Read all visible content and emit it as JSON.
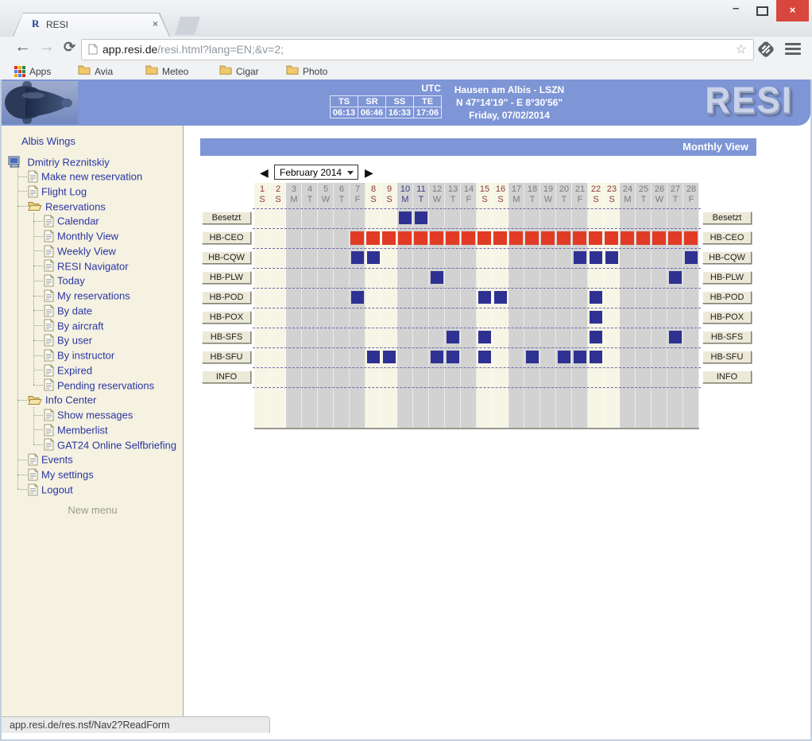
{
  "browser": {
    "window_controls": {
      "minimize": "–",
      "maximize": "",
      "close": "×"
    },
    "tab": {
      "favicon_letter": "R",
      "title": "RESI",
      "close": "×"
    },
    "url": {
      "host": "app.resi.de",
      "rest": "/resi.html?lang=EN;&v=2;"
    },
    "apps_label": "Apps",
    "bookmarks": [
      {
        "label": "Avia"
      },
      {
        "label": "Meteo"
      },
      {
        "label": "Cigar"
      },
      {
        "label": "Photo"
      }
    ],
    "status_text": "app.resi.de/res.nsf/Nav2?ReadForm"
  },
  "header": {
    "utc_label": "UTC",
    "time_table": {
      "headers": [
        "TS",
        "SR",
        "SS",
        "TE"
      ],
      "values": [
        "06:13",
        "06:46",
        "16:33",
        "17:06"
      ]
    },
    "location": {
      "line1": "Hausen am Albis - LSZN",
      "line2": "N 47°14'19\" - E 8°30'56\"",
      "line3": "Friday, 07/02/2014"
    },
    "logo": "RESI"
  },
  "sidebar": {
    "club": "Albis Wings",
    "user": "Dmitriy Reznitskiy",
    "items": [
      {
        "label": "Make new reservation",
        "icon": "doc",
        "level": 1
      },
      {
        "label": "Flight Log",
        "icon": "doc",
        "level": 1
      },
      {
        "label": "Reservations",
        "icon": "folder",
        "level": 1
      },
      {
        "label": "Calendar",
        "icon": "doc",
        "level": 2
      },
      {
        "label": "Monthly View",
        "icon": "doc",
        "level": 2
      },
      {
        "label": "Weekly View",
        "icon": "doc",
        "level": 2
      },
      {
        "label": "RESI Navigator",
        "icon": "doc",
        "level": 2
      },
      {
        "label": "Today",
        "icon": "doc",
        "level": 2
      },
      {
        "label": "My reservations",
        "icon": "doc",
        "level": 2
      },
      {
        "label": "By date",
        "icon": "doc",
        "level": 2
      },
      {
        "label": "By aircraft",
        "icon": "doc",
        "level": 2
      },
      {
        "label": "By user",
        "icon": "doc",
        "level": 2
      },
      {
        "label": "By instructor",
        "icon": "doc",
        "level": 2
      },
      {
        "label": "Expired",
        "icon": "doc",
        "level": 2
      },
      {
        "label": "Pending reservations",
        "icon": "doc",
        "level": 2
      },
      {
        "label": "Info Center",
        "icon": "folder",
        "level": 1
      },
      {
        "label": "Show messages",
        "icon": "doc",
        "level": 2
      },
      {
        "label": "Memberlist",
        "icon": "doc",
        "level": 2
      },
      {
        "label": "GAT24 Online Selfbriefing",
        "icon": "doc",
        "level": 2
      },
      {
        "label": "Events",
        "icon": "doc",
        "level": 1
      },
      {
        "label": "My settings",
        "icon": "doc",
        "level": 1
      },
      {
        "label": "Logout",
        "icon": "doc",
        "level": 1
      }
    ],
    "footer": "New menu"
  },
  "main": {
    "title": "Monthly View",
    "month_selector": {
      "prev": "◀",
      "value": "February 2014",
      "next": "▶"
    },
    "calendar": {
      "days": [
        {
          "n": 1,
          "w": "S",
          "weekend": true
        },
        {
          "n": 2,
          "w": "S",
          "weekend": true
        },
        {
          "n": 3,
          "w": "M",
          "weekend": false
        },
        {
          "n": 4,
          "w": "T",
          "weekend": false
        },
        {
          "n": 5,
          "w": "W",
          "weekend": false
        },
        {
          "n": 6,
          "w": "T",
          "weekend": false
        },
        {
          "n": 7,
          "w": "F",
          "weekend": false
        },
        {
          "n": 8,
          "w": "S",
          "weekend": true
        },
        {
          "n": 9,
          "w": "S",
          "weekend": true
        },
        {
          "n": 10,
          "w": "M",
          "weekend": false
        },
        {
          "n": 11,
          "w": "T",
          "weekend": false
        },
        {
          "n": 12,
          "w": "W",
          "weekend": false
        },
        {
          "n": 13,
          "w": "T",
          "weekend": false
        },
        {
          "n": 14,
          "w": "F",
          "weekend": false
        },
        {
          "n": 15,
          "w": "S",
          "weekend": true
        },
        {
          "n": 16,
          "w": "S",
          "weekend": true
        },
        {
          "n": 17,
          "w": "M",
          "weekend": false
        },
        {
          "n": 18,
          "w": "T",
          "weekend": false
        },
        {
          "n": 19,
          "w": "W",
          "weekend": false
        },
        {
          "n": 20,
          "w": "T",
          "weekend": false
        },
        {
          "n": 21,
          "w": "F",
          "weekend": false
        },
        {
          "n": 22,
          "w": "S",
          "weekend": true
        },
        {
          "n": 23,
          "w": "S",
          "weekend": true
        },
        {
          "n": 24,
          "w": "M",
          "weekend": false
        },
        {
          "n": 25,
          "w": "T",
          "weekend": false
        },
        {
          "n": 26,
          "w": "W",
          "weekend": false
        },
        {
          "n": 27,
          "w": "T",
          "weekend": false
        },
        {
          "n": 28,
          "w": "F",
          "weekend": false
        }
      ],
      "highlighted_days": [
        10,
        11
      ],
      "rows": [
        {
          "label": "Besetzt",
          "color": "navy",
          "cells": [
            10,
            11
          ]
        },
        {
          "label": "HB-CEO",
          "color": "red",
          "cells": [
            7,
            8,
            9,
            10,
            11,
            12,
            13,
            14,
            15,
            16,
            17,
            18,
            19,
            20,
            21,
            22,
            23,
            24,
            25,
            26,
            27,
            28
          ]
        },
        {
          "label": "HB-CQW",
          "color": "navy",
          "cells": [
            7,
            8,
            21,
            22,
            23,
            28
          ]
        },
        {
          "label": "HB-PLW",
          "color": "navy",
          "cells": [
            12,
            27
          ]
        },
        {
          "label": "HB-POD",
          "color": "navy",
          "cells": [
            7,
            15,
            16,
            22
          ]
        },
        {
          "label": "HB-POX",
          "color": "navy",
          "cells": [
            22
          ]
        },
        {
          "label": "HB-SFS",
          "color": "navy",
          "cells": [
            13,
            15,
            22,
            27
          ]
        },
        {
          "label": "HB-SFU",
          "color": "navy",
          "cells": [
            8,
            9,
            12,
            13,
            15,
            18,
            20,
            21,
            22
          ]
        },
        {
          "label": "INFO",
          "color": "navy",
          "cells": []
        }
      ]
    }
  },
  "colors": {
    "header_blue": "#7e95d6",
    "cell_navy": "#2e3192",
    "cell_red": "#e23b25",
    "weekday_column": "#d2d2d2",
    "weekend_column": "#f6f5e6",
    "sidebar_bg": "#f5f2e2",
    "sidebar_text": "#2a35a0",
    "weekend_daynum": "#8e3939",
    "weekday_daynum": "#7b7b7b",
    "close_button_red": "#d8473d"
  }
}
